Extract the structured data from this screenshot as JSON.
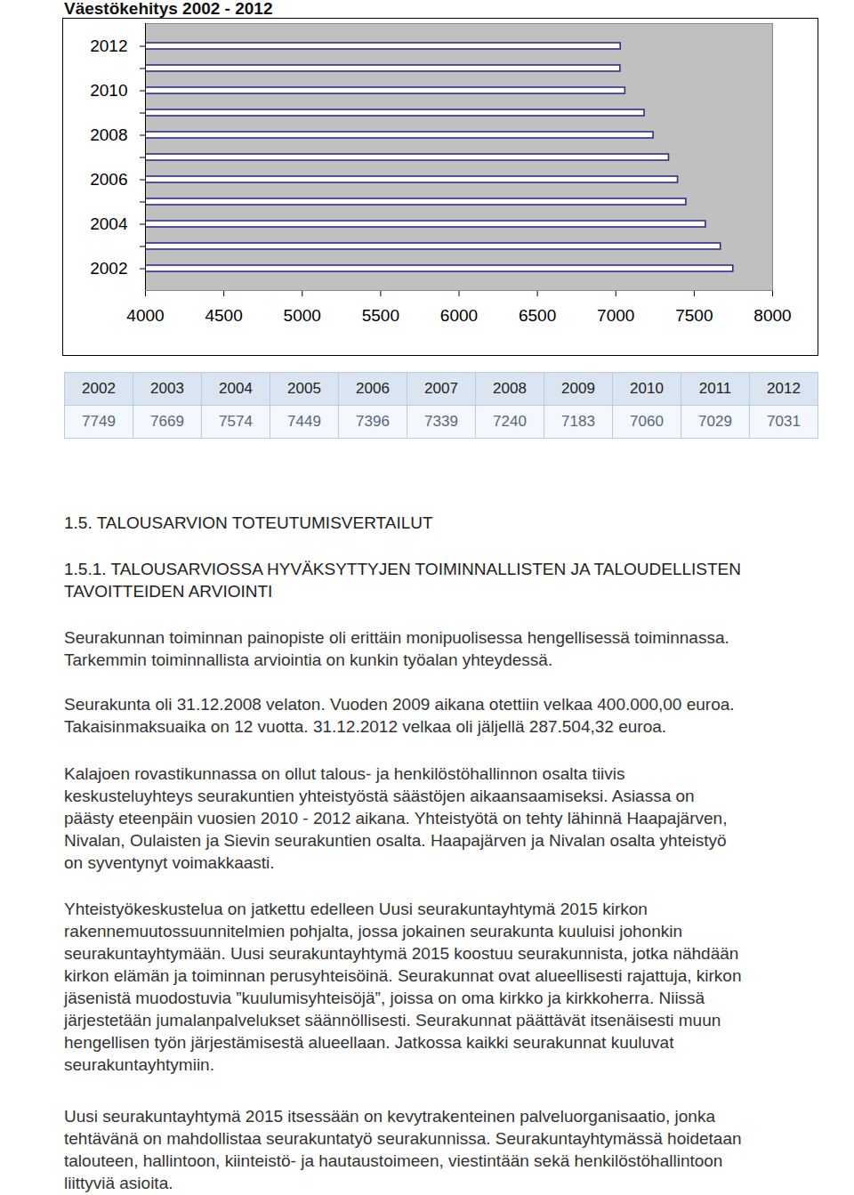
{
  "chart_data": {
    "type": "bar",
    "title": "Väestökehitys 2002 - 2012",
    "orientation": "horizontal",
    "categories": [
      "2012",
      null,
      "2010",
      null,
      "2008",
      null,
      "2006",
      null,
      "2004",
      null,
      "2002"
    ],
    "values": [
      7031,
      7029,
      7060,
      7183,
      7240,
      7339,
      7396,
      7449,
      7574,
      7669,
      7749
    ],
    "color": "#2e2e8f",
    "xlim": [
      4000,
      8000
    ],
    "xticks": [
      4000,
      4500,
      5000,
      5500,
      6000,
      6500,
      7000,
      7500,
      8000
    ],
    "grid": false
  },
  "table": {
    "rows": [
      [
        "2002",
        "2003",
        "2004",
        "2005",
        "2006",
        "2007",
        "2008",
        "2009",
        "2010",
        "2011",
        "2012"
      ],
      [
        "7749",
        "7669",
        "7574",
        "7449",
        "7396",
        "7339",
        "7240",
        "7183",
        "7060",
        "7029",
        "7031"
      ]
    ]
  },
  "headings": [
    [
      "1.5. TALOUSARVION TOTEUTUMISVERTAILUT"
    ],
    [
      "1.5.1. TALOUSARVIOSSA HYVÄKSYTTYJEN TOIMINNALLISTEN JA TALOUDELLISTEN",
      "TAVOITTEIDEN ARVIOINTI"
    ]
  ],
  "paragraphs": [
    [
      "Seurakunnan toiminnan painopiste oli erittäin monipuolisessa hengellisessä toiminnassa.",
      "Tarkemmin toiminnallista arviointia on kunkin työalan yhteydessä."
    ],
    [
      "Seurakunta oli 31.12.2008 velaton. Vuoden 2009 aikana otettiin velkaa 400.000,00 euroa.",
      "Takaisinmaksuaika on 12 vuotta. 31.12.2012 velkaa oli jäljellä 287.504,32 euroa."
    ],
    [
      "Kalajoen rovastikunnassa on ollut talous- ja henkilöstöhallinnon osalta tiivis",
      "keskusteluyhteys seurakuntien yhteistyöstä säästöjen aikaansaamiseksi. Asiassa on",
      "päästy eteenpäin vuosien 2010 - 2012 aikana. Yhteistyötä on tehty lähinnä Haapajärven,",
      "Nivalan, Oulaisten ja Sievin seurakuntien osalta. Haapajärven ja Nivalan osalta yhteistyö",
      "on syventynyt voimakkaasti."
    ],
    [
      "Yhteistyökeskustelua on jatkettu edelleen Uusi seurakuntayhtymä 2015 kirkon",
      "rakennemuutossuunnitelmien pohjalta, jossa jokainen seurakunta kuuluisi johonkin",
      "seurakuntayhtymään. Uusi seurakuntayhtymä 2015 koostuu seurakunnista, jotka nähdään",
      "kirkon elämän ja toiminnan perusyhteisöinä. Seurakunnat ovat alueellisesti rajattuja, kirkon",
      "jäsenistä muodostuvia ”kuulumisyhteisöjä”, joissa on oma kirkko ja kirkkoherra. Niissä",
      "järjestetään jumalanpalvelukset säännöllisesti. Seurakunnat päättävät itsenäisesti muun",
      "hengellisen työn järjestämisestä alueellaan. Jatkossa kaikki seurakunnat kuuluvat",
      "seurakuntayhtymiin."
    ],
    [
      "Uusi seurakuntayhtymä 2015 itsessään on kevytrakenteinen palveluorganisaatio, jonka",
      "tehtävänä on mahdollistaa seurakuntatyö seurakunnissa. Seurakuntayhtymässä hoidetaan",
      "talouteen, hallintoon, kiinteistö- ja hautaustoimeen, viestintään sekä henkilöstöhallintoon",
      "liittyviä asioita."
    ]
  ]
}
